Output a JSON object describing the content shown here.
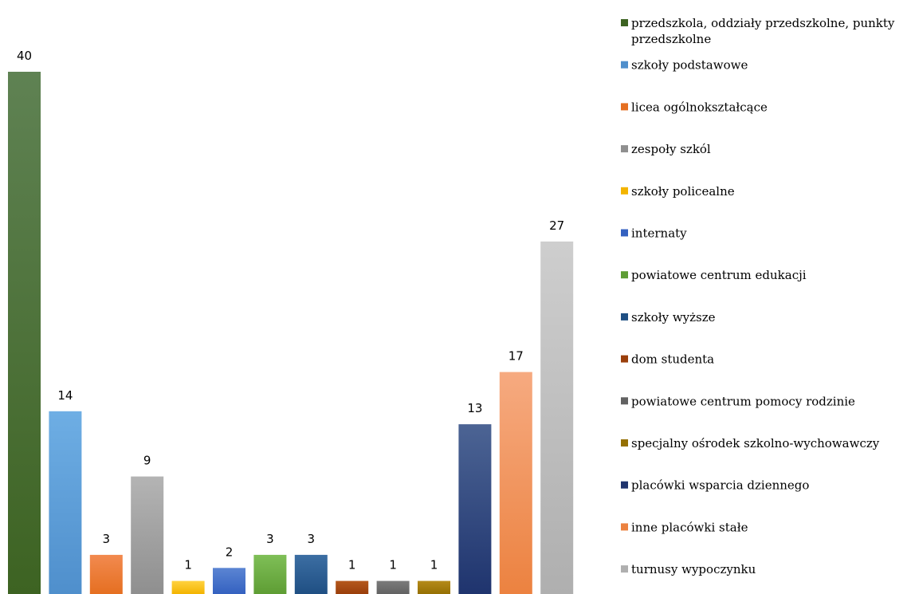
{
  "chart_data": {
    "type": "bar",
    "title": "",
    "xlabel": "",
    "ylabel": "",
    "ylim": [
      0,
      40
    ],
    "grid": false,
    "legend_position": "right",
    "categories": [
      "przedszkola, oddziały przedszkolne, punkty przedszkolne",
      "szkoły podstawowe",
      "licea ogólnokształcące",
      "zespoły szkól",
      "szkoły policealne",
      "internaty",
      "powiatowe centrum edukacji",
      "szkoły wyższe",
      "dom studenta",
      "powiatowe centrum pomocy rodzinie",
      "specjalny ośrodek szkolno-wychowawczy",
      "placówki wsparcia dziennego",
      "inne placówki stałe",
      "turnusy wypoczynku"
    ],
    "values": [
      40,
      14,
      3,
      9,
      1,
      2,
      3,
      3,
      1,
      1,
      1,
      13,
      17,
      27
    ],
    "legend": [
      {
        "lines": [
          "przedszkola, oddziały przedszkolne, punkty",
          "przedszkolne"
        ]
      },
      {
        "lines": [
          "szkoły podstawowe"
        ]
      },
      {
        "lines": [
          "licea ogólnokształcące"
        ]
      },
      {
        "lines": [
          "zespoły szkól"
        ]
      },
      {
        "lines": [
          "szkoły policealne"
        ]
      },
      {
        "lines": [
          "internaty"
        ]
      },
      {
        "lines": [
          "powiatowe centrum edukacji"
        ]
      },
      {
        "lines": [
          "szkoły wyższe"
        ]
      },
      {
        "lines": [
          "dom studenta"
        ]
      },
      {
        "lines": [
          "powiatowe centrum pomocy rodzinie"
        ]
      },
      {
        "lines": [
          "specjalny ośrodek szkolno-wychowawczy"
        ]
      },
      {
        "lines": [
          "placówki wsparcia dziennego"
        ]
      },
      {
        "lines": [
          "inne placówki stałe"
        ]
      },
      {
        "lines": [
          "turnusy wypoczynku"
        ]
      }
    ],
    "colors": [
      [
        "#5f8253",
        "#3d6322"
      ],
      [
        "#6eaee4",
        "#4f8fcc"
      ],
      [
        "#f28a4f",
        "#e56f21"
      ],
      [
        "#b4b4b4",
        "#8f8f8f"
      ],
      [
        "#ffd23f",
        "#f3b400"
      ],
      [
        "#5b85d3",
        "#3461c0"
      ],
      [
        "#7fbf57",
        "#5e9d34"
      ],
      [
        "#3c6ea3",
        "#1f4f83"
      ],
      [
        "#b5581c",
        "#9a3e0b"
      ],
      [
        "#7b7b7b",
        "#626262"
      ],
      [
        "#b58b1a",
        "#957003"
      ],
      [
        "#4c6494",
        "#1f346e"
      ],
      [
        "#f6aa80",
        "#ec8240"
      ],
      [
        "#cecece",
        "#afafaf"
      ]
    ]
  }
}
